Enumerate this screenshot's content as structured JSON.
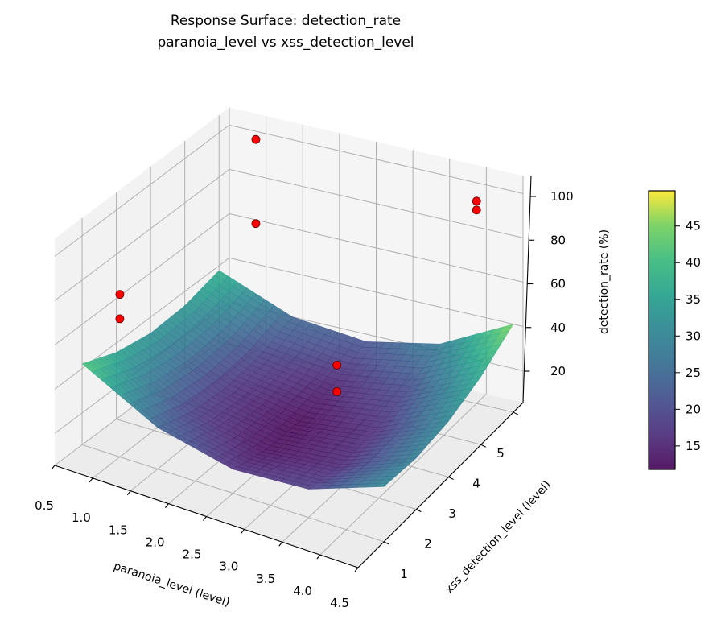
{
  "chart_data": {
    "type": "surface",
    "title": "Response Surface: detection_rate",
    "subtitle": "paranoia_level vs xss_detection_level",
    "xlabel": "paranoia_level (level)",
    "ylabel": "xss_detection_level (level)",
    "zlabel": "detection_rate (%)",
    "xlim": [
      0.5,
      4.5
    ],
    "ylim": [
      0.2,
      5.3
    ],
    "zlim": [
      5.6,
      108
    ],
    "xticks": [
      "0.5",
      "1.0",
      "1.5",
      "2.0",
      "2.5",
      "3.0",
      "3.5",
      "4.0",
      "4.5"
    ],
    "yticks": [
      "1",
      "2",
      "3",
      "4",
      "5"
    ],
    "zticks": [
      "20",
      "40",
      "60",
      "80",
      "100"
    ],
    "grid": true,
    "colormap": "viridis",
    "surface": {
      "x": [
        0.5,
        1.5,
        2.5,
        3.5,
        4.5
      ],
      "y": [
        1,
        2,
        3,
        4,
        5
      ],
      "z": [
        [
          42.2,
          24.3,
          16.4,
          18.4,
          30.5
        ],
        [
          35.7,
          19.0,
          12.3,
          15.6,
          28.8
        ],
        [
          32.8,
          17.3,
          11.8,
          16.3,
          30.8
        ],
        [
          33.6,
          19.2,
          14.9,
          20.6,
          36.3
        ],
        [
          37.9,
          24.8,
          21.6,
          28.5,
          45.4
        ]
      ]
    },
    "points": [
      {
        "x": 1,
        "y": 1,
        "z": 79
      },
      {
        "x": 1,
        "y": 1,
        "z": 68
      },
      {
        "x": 1,
        "y": 5,
        "z": 101
      },
      {
        "x": 1,
        "y": 5,
        "z": 63
      },
      {
        "x": 3,
        "y": 3,
        "z": 42
      },
      {
        "x": 3,
        "y": 3,
        "z": 30
      },
      {
        "x": 4,
        "y": 5,
        "z": 97
      },
      {
        "x": 4,
        "y": 5,
        "z": 93
      }
    ],
    "point_color": "#ff0000",
    "colorbar": {
      "label": "detection_rate (%)",
      "range": [
        11.8,
        49.8
      ],
      "ticks": [
        "15",
        "20",
        "25",
        "30",
        "35",
        "40",
        "45"
      ]
    }
  }
}
